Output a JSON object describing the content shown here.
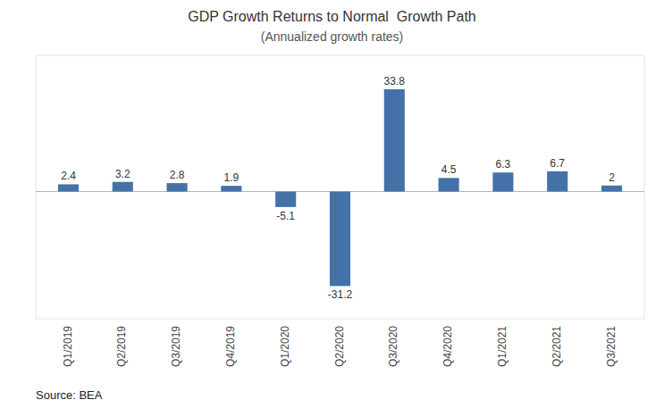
{
  "chart_data": {
    "type": "bar",
    "title": "GDP Growth Returns to Normal  Growth Path",
    "subtitle": "(Annualized growth rates)",
    "categories": [
      "Q1/2019",
      "Q2/2019",
      "Q3/2019",
      "Q4/2019",
      "Q1/2020",
      "Q2/2020",
      "Q3/2020",
      "Q4/2020",
      "Q1/2021",
      "Q2/2021",
      "Q3/2021"
    ],
    "values": [
      2.4,
      3.2,
      2.8,
      1.9,
      -5.1,
      -31.2,
      33.8,
      4.5,
      6.3,
      6.7,
      2.0
    ],
    "color": "#4472A8",
    "ylim": [
      -42,
      45
    ],
    "grid": false,
    "data_labels": true,
    "tick_labels": "x",
    "annotations": [
      "Source: BEA"
    ]
  }
}
